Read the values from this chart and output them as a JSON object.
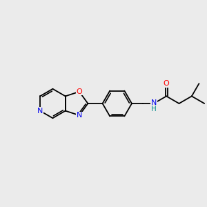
{
  "background_color": "#ebebeb",
  "bond_color": "#000000",
  "atom_colors": {
    "O": "#ff0000",
    "N": "#0000ee",
    "NH_N": "#0000ee",
    "NH_H": "#008b8b",
    "C": "#000000"
  },
  "figsize": [
    3.0,
    3.0
  ],
  "dpi": 100
}
